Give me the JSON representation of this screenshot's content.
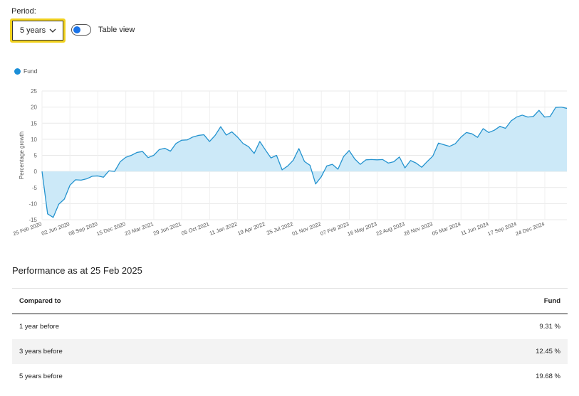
{
  "period": {
    "label": "Period:",
    "selected": "5 years"
  },
  "toggle": {
    "label": "Table view",
    "on": false
  },
  "colors": {
    "line": "#2493cf",
    "fill": "#cce9f8",
    "legend": "#1b8fd8",
    "highlight": "#f2d21f"
  },
  "chart_data": {
    "type": "area",
    "title": "",
    "xlabel": "",
    "ylabel": "Percentage growth",
    "ylim": [
      -15,
      25
    ],
    "yticks": [
      25,
      20,
      15,
      10,
      5,
      0,
      -5,
      -10,
      -15
    ],
    "grid": true,
    "legend_position": "top-left",
    "x_tick_labels": [
      "25 Feb 2020",
      "02 Jun 2020",
      "08 Sep 2020",
      "15 Dec 2020",
      "23 Mar 2021",
      "29 Jun 2021",
      "05 Oct 2021",
      "11 Jan 2022",
      "19 Apr 2022",
      "25 Jul 2022",
      "01 Nov 2022",
      "07 Feb 2023",
      "16 May 2023",
      "22 Aug 2023",
      "28 Nov 2023",
      "05 Mar 2024",
      "11 Jun 2024",
      "17 Sep 2024",
      "24 Dec 2024"
    ],
    "series": [
      {
        "name": "Fund",
        "values": [
          0,
          -13.2,
          -14.3,
          -10.2,
          -8.6,
          -4.3,
          -2.6,
          -2.7,
          -2.3,
          -1.5,
          -1.4,
          -1.8,
          0.2,
          0,
          3,
          4.4,
          5,
          5.9,
          6.2,
          4.3,
          5,
          6.8,
          7.2,
          6.3,
          8.7,
          9.7,
          9.8,
          10.7,
          11.2,
          11.4,
          9.3,
          11.2,
          13.9,
          11.3,
          12.3,
          10.7,
          8.7,
          7.7,
          5.6,
          9.3,
          6.7,
          4.2,
          5,
          0.5,
          1.7,
          3.5,
          7.1,
          3.1,
          1.9,
          -3.9,
          -1.7,
          1.7,
          2.2,
          0.7,
          4.6,
          6.5,
          3.9,
          2.2,
          3.6,
          3.7,
          3.6,
          3.7,
          2.6,
          3,
          4.5,
          1.1,
          3.4,
          2.6,
          1.3,
          3.1,
          4.8,
          8.8,
          8.3,
          7.8,
          8.6,
          10.6,
          12.1,
          11.7,
          10.6,
          13.3,
          12.1,
          12.8,
          14,
          13.4,
          15.7,
          16.9,
          17.5,
          16.9,
          17.1,
          19,
          16.9,
          17.1,
          19.9,
          20,
          19.6
        ]
      }
    ]
  },
  "performance": {
    "title": "Performance as at 25 Feb 2025",
    "columns": [
      "Compared to",
      "Fund"
    ],
    "rows": [
      {
        "label": "1 year before",
        "value": "9.31 %"
      },
      {
        "label": "3 years before",
        "value": "12.45 %"
      },
      {
        "label": "5 years before",
        "value": "19.68 %"
      }
    ]
  }
}
